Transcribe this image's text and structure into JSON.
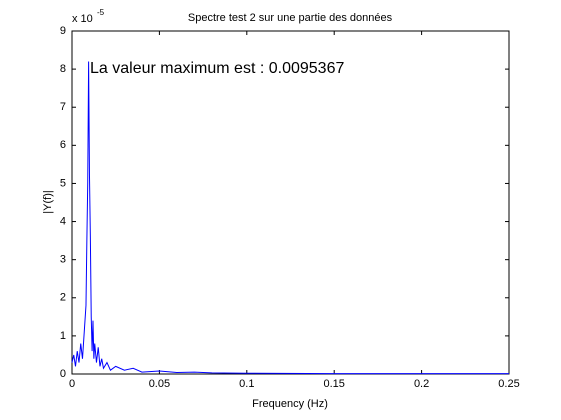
{
  "chart_data": {
    "type": "line",
    "title": "Spectre test 2 sur une partie des données",
    "x_label": "Frequency (Hz)",
    "y_label": "|Y(f)|",
    "y_exponent_base": "x 10",
    "y_exponent": "-5",
    "annotation": "La valeur maximum est : 0.0095367",
    "xlim": [
      0,
      0.25
    ],
    "xticks": [
      0,
      0.05,
      0.1,
      0.15,
      0.2,
      0.25
    ],
    "ylim": [
      0,
      9
    ],
    "yticks": [
      0,
      1,
      2,
      3,
      4,
      5,
      6,
      7,
      8,
      9
    ],
    "grid": false,
    "series": [
      {
        "color": "#0000ff",
        "x": [
          0,
          0.001,
          0.002,
          0.003,
          0.004,
          0.005,
          0.006,
          0.007,
          0.008,
          0.0085,
          0.009,
          0.0095,
          0.01,
          0.0105,
          0.011,
          0.0115,
          0.012,
          0.0125,
          0.013,
          0.014,
          0.015,
          0.016,
          0.017,
          0.018,
          0.02,
          0.022,
          0.025,
          0.03,
          0.035,
          0.04,
          0.05,
          0.06,
          0.07,
          0.08,
          0.1,
          0.15,
          0.2,
          0.25
        ],
        "values": [
          0.3,
          0.5,
          0.2,
          0.6,
          0.3,
          0.8,
          0.4,
          1.1,
          1.8,
          3.5,
          5.0,
          8.2,
          5.2,
          3.6,
          1.5,
          0.6,
          1.4,
          0.4,
          0.8,
          0.3,
          0.7,
          0.2,
          0.4,
          0.15,
          0.3,
          0.1,
          0.2,
          0.1,
          0.15,
          0.05,
          0.08,
          0.04,
          0.05,
          0.03,
          0.02,
          0.01,
          0.01,
          0.01
        ]
      }
    ]
  }
}
